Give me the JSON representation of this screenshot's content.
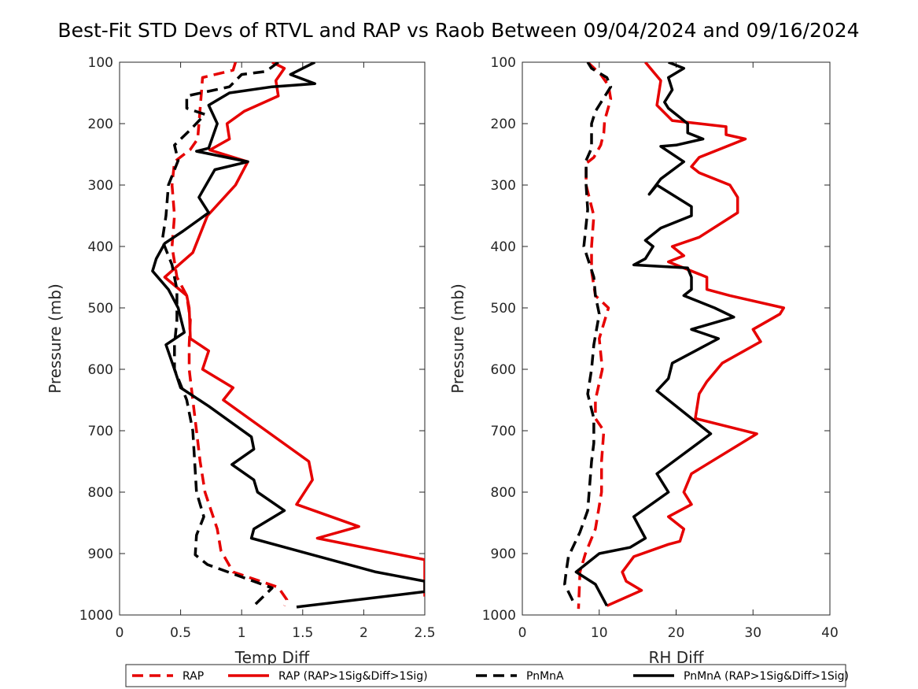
{
  "title": "Best-Fit STD Devs of RTVL and RAP vs Raob Between 09/04/2024 and 09/16/2024",
  "legend": {
    "placement": "bottom",
    "entries": [
      {
        "label": "RAP",
        "color": "#e60000",
        "dash": true
      },
      {
        "label": "RAP (RAP>1Sig&Diff>1Sig)",
        "color": "#e60000",
        "dash": false
      },
      {
        "label": "PnMnA",
        "color": "#000000",
        "dash": true
      },
      {
        "label": "PnMnA (RAP>1Sig&Diff>1Sig)",
        "color": "#000000",
        "dash": false
      }
    ]
  },
  "chart_data": [
    {
      "type": "line",
      "xlabel": "Temp Diff",
      "ylabel": "Pressure (mb)",
      "xlim": [
        0,
        2.5
      ],
      "ylim": [
        100,
        1000
      ],
      "y_reversed": true,
      "grid": false,
      "xticks": [
        "0",
        "0.5",
        "1",
        "1.5",
        "2",
        "2.5"
      ],
      "yticks": [
        "100",
        "200",
        "300",
        "400",
        "500",
        "600",
        "700",
        "800",
        "900",
        "1000"
      ],
      "series": [
        {
          "name": "RAP",
          "color": "#e60000",
          "dash": true,
          "points": [
            [
              0.95,
              100
            ],
            [
              0.93,
              113
            ],
            [
              0.68,
              125
            ],
            [
              0.67,
              150
            ],
            [
              0.65,
              200
            ],
            [
              0.64,
              225
            ],
            [
              0.58,
              242
            ],
            [
              0.45,
              262
            ],
            [
              0.43,
              300
            ],
            [
              0.45,
              350
            ],
            [
              0.43,
              400
            ],
            [
              0.47,
              450
            ],
            [
              0.55,
              480
            ],
            [
              0.58,
              520
            ],
            [
              0.57,
              560
            ],
            [
              0.57,
              600
            ],
            [
              0.6,
              650
            ],
            [
              0.63,
              700
            ],
            [
              0.66,
              750
            ],
            [
              0.7,
              800
            ],
            [
              0.75,
              830
            ],
            [
              0.8,
              860
            ],
            [
              0.83,
              895
            ],
            [
              0.93,
              930
            ],
            [
              1.3,
              955
            ],
            [
              1.37,
              975
            ],
            [
              1.35,
              985
            ]
          ]
        },
        {
          "name": "RAP (RAP>1Sig&Diff>1Sig)",
          "color": "#e60000",
          "dash": false,
          "points": [
            [
              1.25,
              100
            ],
            [
              1.35,
              110
            ],
            [
              1.28,
              130
            ],
            [
              1.3,
              155
            ],
            [
              1.02,
              180
            ],
            [
              0.88,
              200
            ],
            [
              0.9,
              225
            ],
            [
              0.74,
              243
            ],
            [
              1.05,
              262
            ],
            [
              0.95,
              300
            ],
            [
              0.72,
              350
            ],
            [
              0.6,
              410
            ],
            [
              0.37,
              450
            ],
            [
              0.55,
              480
            ],
            [
              0.57,
              500
            ],
            [
              0.58,
              550
            ],
            [
              0.73,
              570
            ],
            [
              0.68,
              600
            ],
            [
              0.93,
              630
            ],
            [
              0.85,
              650
            ],
            [
              1.55,
              750
            ],
            [
              1.58,
              780
            ],
            [
              1.45,
              820
            ],
            [
              1.96,
              856
            ],
            [
              1.62,
              875
            ],
            [
              2.5,
              910
            ],
            [
              2.5,
              970
            ]
          ]
        },
        {
          "name": "PnMnA",
          "color": "#000000",
          "dash": true,
          "points": [
            [
              1.3,
              100
            ],
            [
              1.2,
              115
            ],
            [
              1.0,
              120
            ],
            [
              0.9,
              140
            ],
            [
              0.55,
              155
            ],
            [
              0.55,
              175
            ],
            [
              0.7,
              185
            ],
            [
              0.58,
              210
            ],
            [
              0.45,
              235
            ],
            [
              0.48,
              260
            ],
            [
              0.4,
              300
            ],
            [
              0.38,
              350
            ],
            [
              0.35,
              390
            ],
            [
              0.43,
              430
            ],
            [
              0.47,
              470
            ],
            [
              0.47,
              520
            ],
            [
              0.45,
              560
            ],
            [
              0.45,
              600
            ],
            [
              0.55,
              650
            ],
            [
              0.6,
              700
            ],
            [
              0.63,
              800
            ],
            [
              0.69,
              840
            ],
            [
              0.63,
              870
            ],
            [
              0.62,
              902
            ],
            [
              0.72,
              918
            ],
            [
              1.25,
              956
            ],
            [
              1.1,
              985
            ]
          ]
        },
        {
          "name": "PnMnA (RAP>1Sig&Diff>1Sig)",
          "color": "#000000",
          "dash": false,
          "points": [
            [
              1.6,
              100
            ],
            [
              1.4,
              120
            ],
            [
              1.6,
              135
            ],
            [
              1.25,
              140
            ],
            [
              0.9,
              150
            ],
            [
              0.73,
              170
            ],
            [
              0.8,
              200
            ],
            [
              0.73,
              240
            ],
            [
              0.63,
              245
            ],
            [
              1.05,
              262
            ],
            [
              0.78,
              275
            ],
            [
              0.65,
              320
            ],
            [
              0.73,
              345
            ],
            [
              0.52,
              375
            ],
            [
              0.37,
              395
            ],
            [
              0.3,
              420
            ],
            [
              0.27,
              440
            ],
            [
              0.4,
              470
            ],
            [
              0.48,
              500
            ],
            [
              0.53,
              540
            ],
            [
              0.38,
              560
            ],
            [
              0.45,
              600
            ],
            [
              0.5,
              630
            ],
            [
              0.73,
              660
            ],
            [
              1.08,
              710
            ],
            [
              1.1,
              730
            ],
            [
              0.92,
              755
            ],
            [
              1.1,
              780
            ],
            [
              1.13,
              800
            ],
            [
              1.35,
              830
            ],
            [
              1.1,
              860
            ],
            [
              1.08,
              875
            ],
            [
              2.1,
              930
            ],
            [
              2.5,
              945
            ],
            [
              2.5,
              962
            ],
            [
              1.45,
              987
            ]
          ]
        }
      ]
    },
    {
      "type": "line",
      "xlabel": "RH Diff",
      "ylabel": "Pressure (mb)",
      "xlim": [
        0,
        40
      ],
      "ylim": [
        100,
        1000
      ],
      "y_reversed": true,
      "grid": false,
      "xticks": [
        "0",
        "10",
        "20",
        "30",
        "40"
      ],
      "yticks": [
        "100",
        "200",
        "300",
        "400",
        "500",
        "600",
        "700",
        "800",
        "900",
        "1000"
      ],
      "series": [
        {
          "name": "RAP",
          "color": "#e60000",
          "dash": true,
          "points": [
            [
              8.5,
              100
            ],
            [
              10.2,
              120
            ],
            [
              11.2,
              138
            ],
            [
              11.5,
              160
            ],
            [
              10.7,
              195
            ],
            [
              10.6,
              215
            ],
            [
              10.2,
              235
            ],
            [
              9.3,
              255
            ],
            [
              8.3,
              265
            ],
            [
              8.3,
              300
            ],
            [
              9.3,
              350
            ],
            [
              9.0,
              400
            ],
            [
              9.0,
              440
            ],
            [
              9.5,
              480
            ],
            [
              11.2,
              500
            ],
            [
              10.0,
              550
            ],
            [
              10.4,
              600
            ],
            [
              9.5,
              650
            ],
            [
              9.5,
              680
            ],
            [
              10.6,
              700
            ],
            [
              10.3,
              750
            ],
            [
              10.3,
              800
            ],
            [
              9.5,
              860
            ],
            [
              8.2,
              900
            ],
            [
              7.5,
              930
            ],
            [
              7.3,
              990
            ]
          ]
        },
        {
          "name": "RAP (RAP>1Sig&Diff>1Sig)",
          "color": "#e60000",
          "dash": false,
          "points": [
            [
              16,
              100
            ],
            [
              17,
              115
            ],
            [
              18,
              130
            ],
            [
              17.5,
              170
            ],
            [
              19.5,
              195
            ],
            [
              26.5,
              205
            ],
            [
              26.5,
              218
            ],
            [
              29.0,
              225
            ],
            [
              23.0,
              255
            ],
            [
              22.0,
              270
            ],
            [
              23.0,
              280
            ],
            [
              27.0,
              300
            ],
            [
              28.0,
              320
            ],
            [
              28.0,
              345
            ],
            [
              23.0,
              385
            ],
            [
              19.5,
              400
            ],
            [
              21.0,
              415
            ],
            [
              19.0,
              425
            ],
            [
              24.0,
              450
            ],
            [
              24.0,
              470
            ],
            [
              27.0,
              480
            ],
            [
              34.0,
              500
            ],
            [
              33.5,
              510
            ],
            [
              30.0,
              535
            ],
            [
              31.0,
              555
            ],
            [
              26.0,
              590
            ],
            [
              24.0,
              620
            ],
            [
              23.0,
              640
            ],
            [
              22.5,
              680
            ],
            [
              30.5,
              705
            ],
            [
              22.0,
              770
            ],
            [
              21.0,
              800
            ],
            [
              22.0,
              820
            ],
            [
              19.0,
              840
            ],
            [
              21.0,
              860
            ],
            [
              20.5,
              880
            ],
            [
              19.0,
              885
            ],
            [
              14.5,
              905
            ],
            [
              13.0,
              930
            ],
            [
              13.5,
              945
            ],
            [
              15.5,
              960
            ],
            [
              11.0,
              985
            ]
          ]
        },
        {
          "name": "PnMnA",
          "color": "#000000",
          "dash": true,
          "points": [
            [
              8.5,
              100
            ],
            [
              9.0,
              110
            ],
            [
              11.0,
              125
            ],
            [
              11.5,
              140
            ],
            [
              9.5,
              180
            ],
            [
              9.0,
              200
            ],
            [
              9.0,
              240
            ],
            [
              8.3,
              260
            ],
            [
              8.3,
              300
            ],
            [
              8.5,
              340
            ],
            [
              8.0,
              400
            ],
            [
              9.3,
              450
            ],
            [
              9.5,
              480
            ],
            [
              10.0,
              510
            ],
            [
              9.3,
              560
            ],
            [
              9.0,
              600
            ],
            [
              8.5,
              640
            ],
            [
              9.3,
              680
            ],
            [
              9.3,
              720
            ],
            [
              9.0,
              750
            ],
            [
              8.5,
              830
            ],
            [
              7.5,
              865
            ],
            [
              6.0,
              905
            ],
            [
              5.7,
              930
            ],
            [
              5.5,
              950
            ],
            [
              6.5,
              975
            ],
            [
              6.8,
              985
            ]
          ]
        },
        {
          "name": "PnMnA (RAP>1Sig&Diff>1Sig)",
          "color": "#000000",
          "dash": false,
          "points": [
            [
              19,
              100
            ],
            [
              21,
              110
            ],
            [
              19,
              125
            ],
            [
              19.5,
              145
            ],
            [
              18.5,
              165
            ],
            [
              19,
              175
            ],
            [
              21.5,
              200
            ],
            [
              21.5,
              215
            ],
            [
              23.5,
              225
            ],
            [
              20.0,
              235
            ],
            [
              18.0,
              237
            ],
            [
              21.0,
              262
            ],
            [
              18.0,
              290
            ],
            [
              16.5,
              315
            ],
            [
              17.5,
              300
            ],
            [
              22.0,
              335
            ],
            [
              22.0,
              350
            ],
            [
              18.0,
              370
            ],
            [
              16.0,
              390
            ],
            [
              17.0,
              400
            ],
            [
              16.0,
              420
            ],
            [
              14.5,
              430
            ],
            [
              21.5,
              435
            ],
            [
              22.0,
              450
            ],
            [
              22.0,
              470
            ],
            [
              21.0,
              480
            ],
            [
              25.0,
              500
            ],
            [
              27.5,
              515
            ],
            [
              22.0,
              535
            ],
            [
              25.5,
              550
            ],
            [
              19.5,
              590
            ],
            [
              19.0,
              615
            ],
            [
              17.5,
              635
            ],
            [
              24.5,
              705
            ],
            [
              17.5,
              770
            ],
            [
              18.5,
              790
            ],
            [
              19.0,
              800
            ],
            [
              14.5,
              840
            ],
            [
              16.0,
              875
            ],
            [
              14.0,
              890
            ],
            [
              10.0,
              900
            ],
            [
              7.0,
              930
            ],
            [
              9.5,
              950
            ],
            [
              11.0,
              985
            ]
          ]
        }
      ]
    }
  ]
}
